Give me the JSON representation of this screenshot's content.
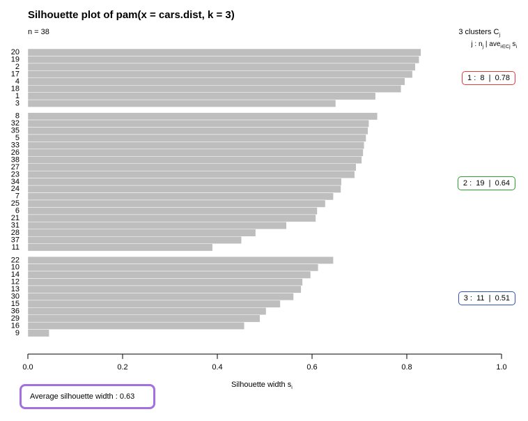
{
  "chart_data": {
    "type": "bar",
    "orientation": "horizontal",
    "title": "Silhouette plot of pam(x = cars.dist, k = 3)",
    "n_label": "n = 38",
    "legend_title": "3 clusters C",
    "legend_title_sub": "j",
    "legend_sub_j": "j :  n",
    "legend_sub_nj": "j",
    "legend_sub_ave": " | ave",
    "legend_sub_ave_sub": "i∈Cj",
    "legend_sub_s": " s",
    "legend_sub_s_sub": "i",
    "xlabel": "Silhouette width s",
    "xlabel_sub": "i",
    "xlim": [
      0,
      1
    ],
    "xticks": [
      "0.0",
      "0.2",
      "0.4",
      "0.6",
      "0.8",
      "1.0"
    ],
    "average_label": "Average silhouette width :  0.63",
    "bar_color": "#bebebe",
    "clusters": [
      {
        "label": "1 :  8  |  0.78",
        "border_color": "#e03a3a",
        "items": [
          {
            "id": "20",
            "value": 0.83
          },
          {
            "id": "19",
            "value": 0.826
          },
          {
            "id": "2",
            "value": 0.818
          },
          {
            "id": "17",
            "value": 0.812
          },
          {
            "id": "4",
            "value": 0.796
          },
          {
            "id": "18",
            "value": 0.788
          },
          {
            "id": "1",
            "value": 0.734
          },
          {
            "id": "3",
            "value": 0.65
          }
        ]
      },
      {
        "label": "2 :  19  |  0.64",
        "border_color": "#2ca02c",
        "items": [
          {
            "id": "8",
            "value": 0.738
          },
          {
            "id": "32",
            "value": 0.72
          },
          {
            "id": "35",
            "value": 0.718
          },
          {
            "id": "5",
            "value": 0.714
          },
          {
            "id": "33",
            "value": 0.71
          },
          {
            "id": "26",
            "value": 0.708
          },
          {
            "id": "38",
            "value": 0.705
          },
          {
            "id": "27",
            "value": 0.693
          },
          {
            "id": "23",
            "value": 0.69
          },
          {
            "id": "34",
            "value": 0.662
          },
          {
            "id": "24",
            "value": 0.661
          },
          {
            "id": "7",
            "value": 0.645
          },
          {
            "id": "25",
            "value": 0.628
          },
          {
            "id": "6",
            "value": 0.611
          },
          {
            "id": "21",
            "value": 0.608
          },
          {
            "id": "31",
            "value": 0.546
          },
          {
            "id": "28",
            "value": 0.481
          },
          {
            "id": "37",
            "value": 0.451
          },
          {
            "id": "11",
            "value": 0.39
          }
        ]
      },
      {
        "label": "3 :  11  |  0.51",
        "border_color": "#2a52be",
        "items": [
          {
            "id": "22",
            "value": 0.645
          },
          {
            "id": "10",
            "value": 0.613
          },
          {
            "id": "14",
            "value": 0.597
          },
          {
            "id": "12",
            "value": 0.58
          },
          {
            "id": "13",
            "value": 0.577
          },
          {
            "id": "30",
            "value": 0.561
          },
          {
            "id": "15",
            "value": 0.533
          },
          {
            "id": "36",
            "value": 0.503
          },
          {
            "id": "29",
            "value": 0.49
          },
          {
            "id": "16",
            "value": 0.457
          },
          {
            "id": "9",
            "value": 0.045
          }
        ]
      }
    ]
  }
}
